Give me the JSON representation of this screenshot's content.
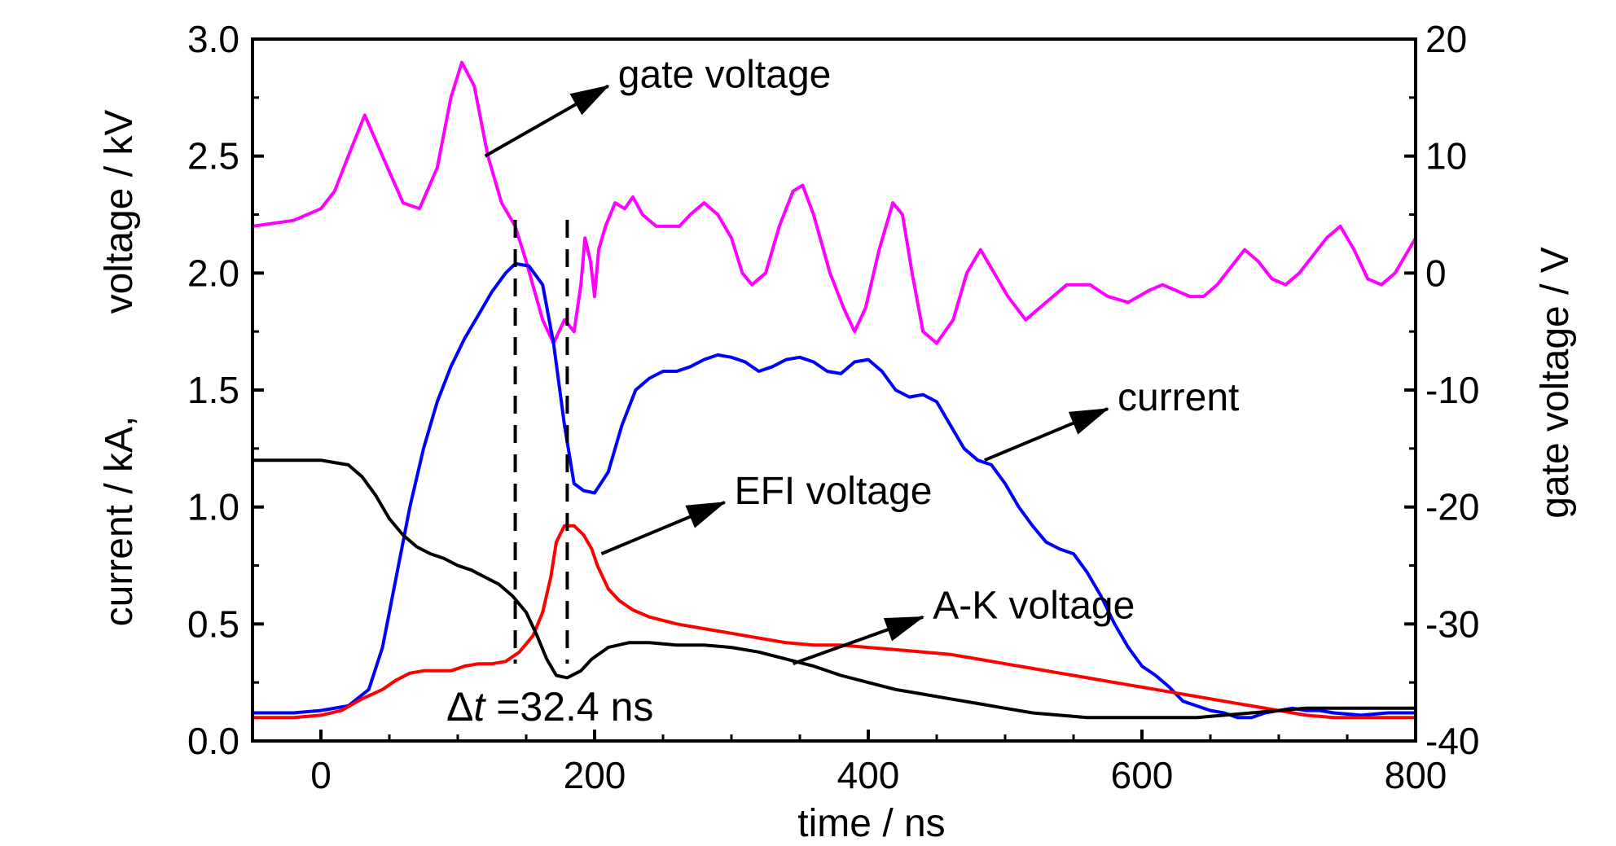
{
  "chart_data": {
    "type": "line",
    "xlabel": "time / ns",
    "ylabel_left": [
      "current / kA,",
      "voltage / kV"
    ],
    "ylabel_right": "gate voltage / V",
    "xlim": [
      -50,
      800
    ],
    "ylim_left": [
      0.0,
      3.0
    ],
    "ylim_right": [
      -40,
      20
    ],
    "x_ticks": [
      "0",
      "200",
      "400",
      "600",
      "800"
    ],
    "y_left_ticks": [
      "0.0",
      "0.5",
      "1.0",
      "1.5",
      "2.0",
      "2.5",
      "3.0"
    ],
    "y_right_ticks": [
      "-40",
      "-30",
      "-20",
      "-10",
      "0",
      "10",
      "20"
    ],
    "grid": false,
    "series": [
      {
        "name": "gate voltage",
        "axis": "right",
        "color": "#ff00ff",
        "points": [
          [
            -50,
            4
          ],
          [
            -20,
            4.5
          ],
          [
            0,
            5.5
          ],
          [
            10,
            7
          ],
          [
            20,
            10
          ],
          [
            32,
            13.5
          ],
          [
            45,
            10
          ],
          [
            60,
            6
          ],
          [
            72,
            5.5
          ],
          [
            85,
            9
          ],
          [
            95,
            15
          ],
          [
            103,
            18
          ],
          [
            112,
            16
          ],
          [
            122,
            10
          ],
          [
            132,
            6
          ],
          [
            142,
            4
          ],
          [
            150,
            1
          ],
          [
            162,
            -4
          ],
          [
            170,
            -6
          ],
          [
            178,
            -4
          ],
          [
            185,
            -5
          ],
          [
            190,
            -1
          ],
          [
            193,
            3
          ],
          [
            197,
            1
          ],
          [
            200,
            -2
          ],
          [
            203,
            2
          ],
          [
            208,
            4
          ],
          [
            215,
            6
          ],
          [
            222,
            5.5
          ],
          [
            228,
            6.5
          ],
          [
            235,
            5
          ],
          [
            245,
            4
          ],
          [
            255,
            4
          ],
          [
            262,
            4
          ],
          [
            270,
            5
          ],
          [
            280,
            6
          ],
          [
            290,
            5
          ],
          [
            300,
            3
          ],
          [
            308,
            0
          ],
          [
            315,
            -1
          ],
          [
            325,
            0
          ],
          [
            335,
            4
          ],
          [
            345,
            7
          ],
          [
            352,
            7.5
          ],
          [
            360,
            5
          ],
          [
            372,
            0
          ],
          [
            382,
            -3
          ],
          [
            390,
            -5
          ],
          [
            398,
            -3
          ],
          [
            408,
            2
          ],
          [
            418,
            6
          ],
          [
            425,
            5
          ],
          [
            432,
            0
          ],
          [
            440,
            -5
          ],
          [
            450,
            -6
          ],
          [
            462,
            -4
          ],
          [
            472,
            0
          ],
          [
            482,
            2
          ],
          [
            492,
            0
          ],
          [
            502,
            -2
          ],
          [
            515,
            -4
          ],
          [
            525,
            -3
          ],
          [
            535,
            -2
          ],
          [
            545,
            -1
          ],
          [
            555,
            -1
          ],
          [
            562,
            -1
          ],
          [
            575,
            -2
          ],
          [
            590,
            -2.5
          ],
          [
            605,
            -1.5
          ],
          [
            615,
            -1
          ],
          [
            625,
            -1.5
          ],
          [
            635,
            -2
          ],
          [
            645,
            -2
          ],
          [
            655,
            -1
          ],
          [
            665,
            0.5
          ],
          [
            675,
            2
          ],
          [
            685,
            1
          ],
          [
            695,
            -0.5
          ],
          [
            705,
            -1
          ],
          [
            715,
            0
          ],
          [
            725,
            1.5
          ],
          [
            735,
            3
          ],
          [
            745,
            4
          ],
          [
            755,
            2
          ],
          [
            765,
            -0.5
          ],
          [
            775,
            -1
          ],
          [
            785,
            0
          ],
          [
            795,
            2
          ],
          [
            800,
            3
          ]
        ]
      },
      {
        "name": "current",
        "axis": "left",
        "color": "#0000ff",
        "points": [
          [
            -50,
            0.12
          ],
          [
            -20,
            0.12
          ],
          [
            0,
            0.13
          ],
          [
            20,
            0.15
          ],
          [
            35,
            0.22
          ],
          [
            45,
            0.4
          ],
          [
            55,
            0.7
          ],
          [
            65,
            1.0
          ],
          [
            75,
            1.25
          ],
          [
            85,
            1.45
          ],
          [
            95,
            1.6
          ],
          [
            105,
            1.72
          ],
          [
            115,
            1.82
          ],
          [
            125,
            1.92
          ],
          [
            135,
            2.0
          ],
          [
            142,
            2.04
          ],
          [
            152,
            2.03
          ],
          [
            162,
            1.95
          ],
          [
            170,
            1.7
          ],
          [
            178,
            1.35
          ],
          [
            185,
            1.1
          ],
          [
            192,
            1.07
          ],
          [
            200,
            1.06
          ],
          [
            210,
            1.15
          ],
          [
            220,
            1.35
          ],
          [
            230,
            1.5
          ],
          [
            240,
            1.55
          ],
          [
            250,
            1.58
          ],
          [
            260,
            1.58
          ],
          [
            270,
            1.6
          ],
          [
            280,
            1.63
          ],
          [
            290,
            1.65
          ],
          [
            300,
            1.64
          ],
          [
            310,
            1.62
          ],
          [
            320,
            1.58
          ],
          [
            330,
            1.6
          ],
          [
            340,
            1.63
          ],
          [
            350,
            1.64
          ],
          [
            360,
            1.62
          ],
          [
            370,
            1.58
          ],
          [
            380,
            1.57
          ],
          [
            390,
            1.62
          ],
          [
            400,
            1.63
          ],
          [
            410,
            1.58
          ],
          [
            420,
            1.5
          ],
          [
            430,
            1.47
          ],
          [
            440,
            1.48
          ],
          [
            450,
            1.45
          ],
          [
            460,
            1.35
          ],
          [
            470,
            1.25
          ],
          [
            480,
            1.2
          ],
          [
            490,
            1.18
          ],
          [
            500,
            1.1
          ],
          [
            510,
            1.0
          ],
          [
            520,
            0.92
          ],
          [
            530,
            0.85
          ],
          [
            540,
            0.82
          ],
          [
            550,
            0.8
          ],
          [
            560,
            0.72
          ],
          [
            570,
            0.62
          ],
          [
            580,
            0.5
          ],
          [
            590,
            0.4
          ],
          [
            600,
            0.32
          ],
          [
            610,
            0.28
          ],
          [
            620,
            0.23
          ],
          [
            630,
            0.17
          ],
          [
            640,
            0.15
          ],
          [
            650,
            0.13
          ],
          [
            660,
            0.12
          ],
          [
            670,
            0.1
          ],
          [
            680,
            0.1
          ],
          [
            690,
            0.12
          ],
          [
            700,
            0.13
          ],
          [
            710,
            0.14
          ],
          [
            720,
            0.13
          ],
          [
            730,
            0.13
          ],
          [
            740,
            0.12
          ],
          [
            760,
            0.11
          ],
          [
            780,
            0.12
          ],
          [
            800,
            0.12
          ]
        ]
      },
      {
        "name": "EFI voltage",
        "axis": "left",
        "color": "#ff0000",
        "points": [
          [
            -50,
            0.1
          ],
          [
            -20,
            0.1
          ],
          [
            0,
            0.11
          ],
          [
            15,
            0.13
          ],
          [
            30,
            0.18
          ],
          [
            45,
            0.22
          ],
          [
            55,
            0.26
          ],
          [
            65,
            0.29
          ],
          [
            75,
            0.3
          ],
          [
            85,
            0.3
          ],
          [
            95,
            0.3
          ],
          [
            105,
            0.32
          ],
          [
            115,
            0.33
          ],
          [
            125,
            0.33
          ],
          [
            135,
            0.34
          ],
          [
            145,
            0.38
          ],
          [
            155,
            0.45
          ],
          [
            162,
            0.55
          ],
          [
            168,
            0.7
          ],
          [
            172,
            0.85
          ],
          [
            178,
            0.92
          ],
          [
            185,
            0.92
          ],
          [
            192,
            0.88
          ],
          [
            198,
            0.82
          ],
          [
            202,
            0.75
          ],
          [
            206,
            0.7
          ],
          [
            210,
            0.65
          ],
          [
            218,
            0.6
          ],
          [
            228,
            0.56
          ],
          [
            240,
            0.53
          ],
          [
            260,
            0.5
          ],
          [
            280,
            0.48
          ],
          [
            300,
            0.46
          ],
          [
            320,
            0.44
          ],
          [
            340,
            0.42
          ],
          [
            360,
            0.41
          ],
          [
            380,
            0.41
          ],
          [
            400,
            0.4
          ],
          [
            420,
            0.39
          ],
          [
            440,
            0.38
          ],
          [
            460,
            0.37
          ],
          [
            480,
            0.35
          ],
          [
            500,
            0.33
          ],
          [
            520,
            0.31
          ],
          [
            540,
            0.29
          ],
          [
            560,
            0.27
          ],
          [
            580,
            0.25
          ],
          [
            600,
            0.23
          ],
          [
            620,
            0.21
          ],
          [
            640,
            0.19
          ],
          [
            660,
            0.17
          ],
          [
            680,
            0.15
          ],
          [
            700,
            0.13
          ],
          [
            720,
            0.11
          ],
          [
            740,
            0.1
          ],
          [
            760,
            0.1
          ],
          [
            780,
            0.1
          ],
          [
            800,
            0.1
          ]
        ]
      },
      {
        "name": "A-K voltage",
        "axis": "left",
        "color": "#000000",
        "points": [
          [
            -50,
            1.2
          ],
          [
            -20,
            1.2
          ],
          [
            0,
            1.2
          ],
          [
            10,
            1.19
          ],
          [
            20,
            1.18
          ],
          [
            30,
            1.13
          ],
          [
            40,
            1.05
          ],
          [
            50,
            0.95
          ],
          [
            60,
            0.88
          ],
          [
            70,
            0.83
          ],
          [
            80,
            0.8
          ],
          [
            90,
            0.78
          ],
          [
            100,
            0.75
          ],
          [
            110,
            0.73
          ],
          [
            120,
            0.7
          ],
          [
            130,
            0.67
          ],
          [
            140,
            0.62
          ],
          [
            150,
            0.55
          ],
          [
            158,
            0.45
          ],
          [
            165,
            0.35
          ],
          [
            172,
            0.28
          ],
          [
            180,
            0.27
          ],
          [
            190,
            0.3
          ],
          [
            198,
            0.35
          ],
          [
            210,
            0.4
          ],
          [
            225,
            0.42
          ],
          [
            240,
            0.42
          ],
          [
            260,
            0.41
          ],
          [
            280,
            0.41
          ],
          [
            300,
            0.4
          ],
          [
            320,
            0.38
          ],
          [
            340,
            0.35
          ],
          [
            360,
            0.32
          ],
          [
            380,
            0.28
          ],
          [
            400,
            0.25
          ],
          [
            420,
            0.22
          ],
          [
            440,
            0.2
          ],
          [
            460,
            0.18
          ],
          [
            480,
            0.16
          ],
          [
            500,
            0.14
          ],
          [
            520,
            0.12
          ],
          [
            540,
            0.11
          ],
          [
            560,
            0.1
          ],
          [
            580,
            0.1
          ],
          [
            600,
            0.1
          ],
          [
            620,
            0.1
          ],
          [
            640,
            0.1
          ],
          [
            660,
            0.11
          ],
          [
            680,
            0.12
          ],
          [
            700,
            0.13
          ],
          [
            720,
            0.14
          ],
          [
            740,
            0.14
          ],
          [
            760,
            0.14
          ],
          [
            780,
            0.14
          ],
          [
            800,
            0.14
          ]
        ]
      }
    ],
    "annotations": [
      {
        "text": "gate voltage",
        "arrow_from": [
          120,
          2.5
        ],
        "arrow_to": [
          210,
          2.8
        ]
      },
      {
        "text": "current",
        "arrow_from": [
          485,
          1.2
        ],
        "arrow_to": [
          575,
          1.42
        ]
      },
      {
        "text": "EFI voltage",
        "arrow_from": [
          205,
          0.8
        ],
        "arrow_to": [
          295,
          1.02
        ]
      },
      {
        "text": "A-K voltage",
        "arrow_from": [
          345,
          0.33
        ],
        "arrow_to": [
          440,
          0.53
        ]
      }
    ],
    "markers": [
      {
        "type": "dashed-vline",
        "x": 142
      },
      {
        "type": "dashed-vline",
        "x": 180
      }
    ],
    "delta_label": {
      "symbol": "Δ",
      "var": "t",
      "text": " =32.4 ns"
    }
  }
}
